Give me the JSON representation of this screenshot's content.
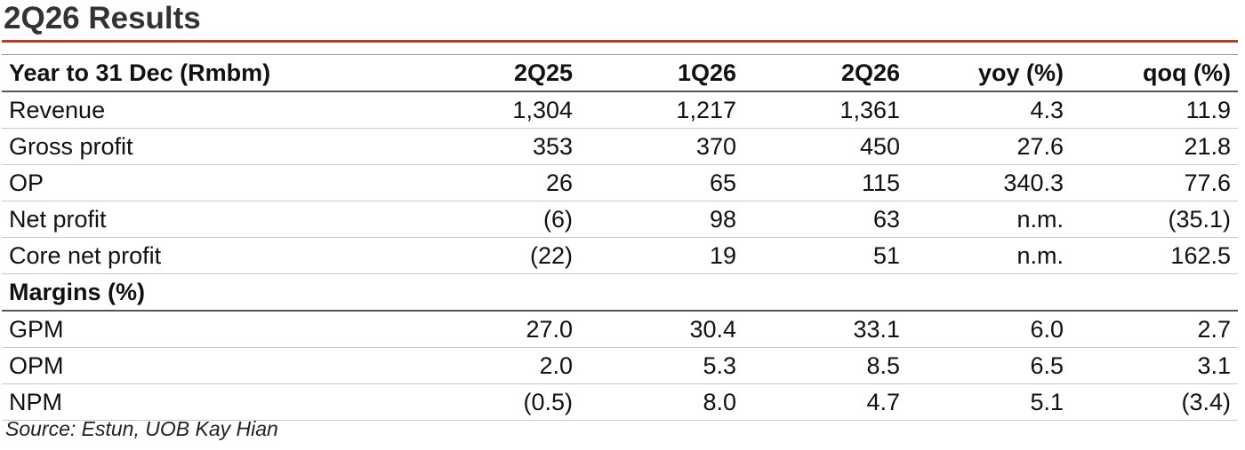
{
  "title": "2Q26 Results",
  "accent_color": "#c0392b",
  "table": {
    "header": [
      "Year to 31 Dec (Rmbm)",
      "2Q25",
      "1Q26",
      "2Q26",
      "yoy (%)",
      "qoq (%)"
    ],
    "rows": [
      [
        "Revenue",
        "1,304",
        "1,217",
        "1,361",
        "4.3",
        "11.9"
      ],
      [
        "Gross profit",
        "353",
        "370",
        "450",
        "27.6",
        "21.8"
      ],
      [
        "OP",
        "26",
        "65",
        "115",
        "340.3",
        "77.6"
      ],
      [
        "Net profit",
        "(6)",
        "98",
        "63",
        "n.m.",
        "(35.1)"
      ],
      [
        "Core net profit",
        "(22)",
        "19",
        "51",
        "n.m.",
        "162.5"
      ]
    ],
    "section_label": "Margins (%)",
    "margin_rows": [
      [
        "GPM",
        "27.0",
        "30.4",
        "33.1",
        "6.0",
        "2.7"
      ],
      [
        "OPM",
        "2.0",
        "5.3",
        "8.5",
        "6.5",
        "3.1"
      ],
      [
        "NPM",
        "(0.5)",
        "8.0",
        "4.7",
        "5.1",
        "(3.4)"
      ]
    ]
  },
  "source": "Source: Estun, UOB Kay Hian"
}
